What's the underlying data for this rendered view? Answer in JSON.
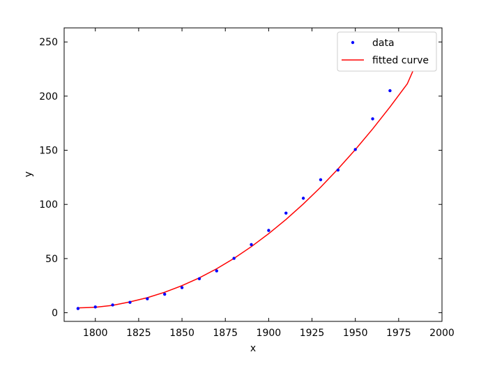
{
  "chart_data": {
    "type": "scatter",
    "title": "",
    "xlabel": "x",
    "ylabel": "y",
    "xlim": [
      1782,
      2000
    ],
    "ylim": [
      -8,
      263
    ],
    "xticks": [
      1800,
      1825,
      1850,
      1875,
      1900,
      1925,
      1950,
      1975,
      2000
    ],
    "yticks": [
      0,
      50,
      100,
      150,
      200,
      250
    ],
    "tick_direction": "in",
    "grid": false,
    "legend_position": "top-right",
    "series": [
      {
        "name": "data",
        "kind": "scatter",
        "color": "#0000ff",
        "x": [
          1790,
          1800,
          1810,
          1820,
          1830,
          1840,
          1850,
          1860,
          1870,
          1880,
          1890,
          1900,
          1910,
          1920,
          1930,
          1940,
          1950,
          1960,
          1970,
          1980,
          1990
        ],
        "y": [
          3.9,
          5.3,
          7.2,
          9.6,
          12.9,
          17.1,
          23.2,
          31.4,
          38.6,
          50.2,
          62.9,
          76.0,
          92.0,
          105.7,
          122.8,
          131.7,
          150.7,
          179.0,
          205.0,
          226.5,
          248.7
        ]
      },
      {
        "name": "fitted curve",
        "kind": "line",
        "color": "#ff0000",
        "x": [
          1790,
          1800,
          1810,
          1820,
          1830,
          1840,
          1850,
          1860,
          1870,
          1880,
          1890,
          1900,
          1910,
          1920,
          1930,
          1940,
          1950,
          1960,
          1970,
          1980,
          1990
        ],
        "y": [
          4.5,
          5.0,
          6.8,
          10.0,
          13.9,
          18.9,
          25.0,
          32.2,
          40.6,
          50.2,
          61.0,
          73.0,
          86.1,
          100.4,
          115.9,
          132.7,
          150.6,
          169.7,
          190.0,
          211.4,
          248.0
        ]
      }
    ]
  }
}
